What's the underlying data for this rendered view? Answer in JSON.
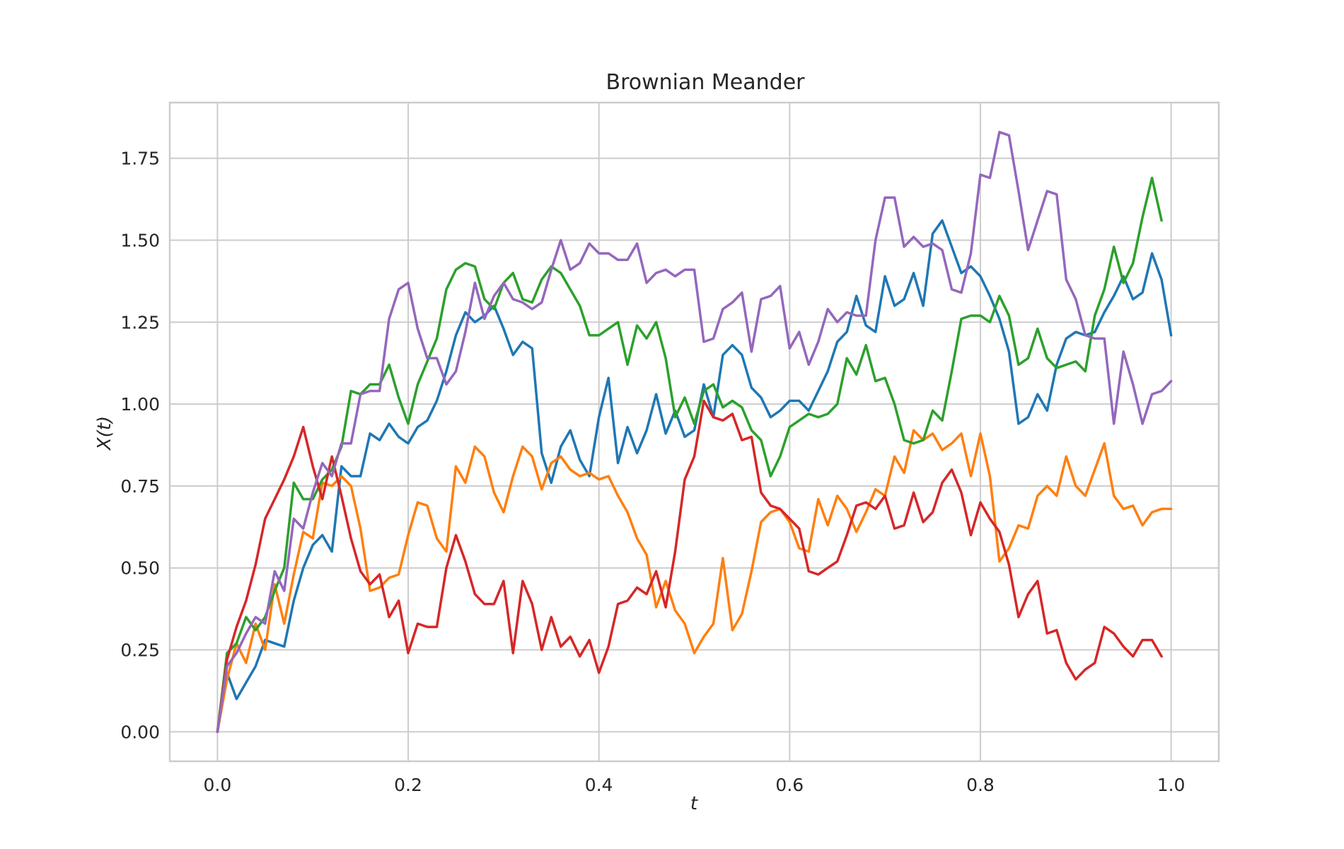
{
  "chart_data": {
    "type": "line",
    "title": "Brownian Meander",
    "xlabel": "t",
    "ylabel": "X(t)",
    "xlim": [
      -0.05,
      1.05
    ],
    "ylim": [
      -0.09,
      1.92
    ],
    "xticks": [
      0.0,
      0.2,
      0.4,
      0.6,
      0.8,
      1.0
    ],
    "xtick_labels": [
      "0.0",
      "0.2",
      "0.4",
      "0.6",
      "0.8",
      "1.0"
    ],
    "yticks": [
      0.0,
      0.25,
      0.5,
      0.75,
      1.0,
      1.25,
      1.5,
      1.75
    ],
    "ytick_labels": [
      "0.00",
      "0.25",
      "0.50",
      "0.75",
      "1.00",
      "1.25",
      "1.50",
      "1.75"
    ],
    "grid": true,
    "legend": "none",
    "x_step": 0.01,
    "series": [
      {
        "color": "#1f77b4",
        "values": [
          0.0,
          0.18,
          0.1,
          0.15,
          0.2,
          0.28,
          0.27,
          0.26,
          0.4,
          0.5,
          0.57,
          0.6,
          0.55,
          0.81,
          0.78,
          0.78,
          0.91,
          0.89,
          0.94,
          0.9,
          0.88,
          0.93,
          0.95,
          1.01,
          1.1,
          1.21,
          1.28,
          1.25,
          1.27,
          1.3,
          1.23,
          1.15,
          1.19,
          1.17,
          0.85,
          0.76,
          0.87,
          0.92,
          0.83,
          0.78,
          0.96,
          1.08,
          0.82,
          0.93,
          0.85,
          0.92,
          1.03,
          0.91,
          0.98,
          0.9,
          0.92,
          1.06,
          0.96,
          1.15,
          1.18,
          1.15,
          1.05,
          1.02,
          0.96,
          0.98,
          1.01,
          1.01,
          0.98,
          1.04,
          1.1,
          1.19,
          1.22,
          1.33,
          1.24,
          1.22,
          1.39,
          1.3,
          1.32,
          1.4,
          1.3,
          1.52,
          1.56,
          1.48,
          1.4,
          1.42,
          1.39,
          1.33,
          1.26,
          1.16,
          0.94,
          0.96,
          1.03,
          0.98,
          1.12,
          1.2,
          1.22,
          1.21,
          1.22,
          1.28,
          1.33,
          1.39,
          1.32,
          1.34,
          1.46,
          1.38,
          1.21
        ]
      },
      {
        "color": "#ff7f0e",
        "values": [
          0.0,
          0.16,
          0.27,
          0.21,
          0.33,
          0.25,
          0.45,
          0.33,
          0.48,
          0.61,
          0.59,
          0.76,
          0.75,
          0.78,
          0.75,
          0.62,
          0.43,
          0.44,
          0.47,
          0.48,
          0.6,
          0.7,
          0.69,
          0.59,
          0.55,
          0.81,
          0.76,
          0.87,
          0.84,
          0.73,
          0.67,
          0.78,
          0.87,
          0.84,
          0.74,
          0.82,
          0.84,
          0.8,
          0.78,
          0.79,
          0.77,
          0.78,
          0.72,
          0.67,
          0.59,
          0.54,
          0.38,
          0.46,
          0.37,
          0.33,
          0.24,
          0.29,
          0.33,
          0.53,
          0.31,
          0.36,
          0.49,
          0.64,
          0.67,
          0.68,
          0.64,
          0.56,
          0.55,
          0.71,
          0.63,
          0.72,
          0.68,
          0.61,
          0.67,
          0.74,
          0.72,
          0.84,
          0.79,
          0.92,
          0.89,
          0.91,
          0.86,
          0.88,
          0.91,
          0.78,
          0.91,
          0.78,
          0.52,
          0.56,
          0.63,
          0.62,
          0.72,
          0.75,
          0.72,
          0.84,
          0.75,
          0.72,
          0.8,
          0.88,
          0.72,
          0.68,
          0.69,
          0.63,
          0.67,
          0.68,
          0.68
        ]
      },
      {
        "color": "#2ca02c",
        "values": [
          0.0,
          0.24,
          0.27,
          0.35,
          0.31,
          0.35,
          0.43,
          0.5,
          0.76,
          0.71,
          0.71,
          0.77,
          0.8,
          0.87,
          1.04,
          1.03,
          1.06,
          1.06,
          1.12,
          1.02,
          0.94,
          1.06,
          1.13,
          1.2,
          1.35,
          1.41,
          1.43,
          1.42,
          1.32,
          1.29,
          1.37,
          1.4,
          1.32,
          1.31,
          1.38,
          1.42,
          1.4,
          1.35,
          1.3,
          1.21,
          1.21,
          1.23,
          1.25,
          1.12,
          1.24,
          1.2,
          1.25,
          1.14,
          0.96,
          1.02,
          0.94,
          1.04,
          1.06,
          0.99,
          1.01,
          0.99,
          0.92,
          0.89,
          0.78,
          0.84,
          0.93,
          0.95,
          0.97,
          0.96,
          0.97,
          1.0,
          1.14,
          1.09,
          1.18,
          1.07,
          1.08,
          1.0,
          0.89,
          0.88,
          0.89,
          0.98,
          0.95,
          1.1,
          1.26,
          1.27,
          1.27,
          1.25,
          1.33,
          1.27,
          1.12,
          1.14,
          1.23,
          1.14,
          1.11,
          1.12,
          1.13,
          1.1,
          1.27,
          1.35,
          1.48,
          1.37,
          1.43,
          1.57,
          1.69,
          1.56
        ]
      },
      {
        "color": "#d62728",
        "values": [
          0.0,
          0.22,
          0.32,
          0.4,
          0.51,
          0.65,
          0.71,
          0.77,
          0.84,
          0.93,
          0.81,
          0.71,
          0.84,
          0.72,
          0.59,
          0.49,
          0.45,
          0.48,
          0.35,
          0.4,
          0.24,
          0.33,
          0.32,
          0.32,
          0.5,
          0.6,
          0.52,
          0.42,
          0.39,
          0.39,
          0.46,
          0.24,
          0.46,
          0.39,
          0.25,
          0.35,
          0.26,
          0.29,
          0.23,
          0.28,
          0.18,
          0.26,
          0.39,
          0.4,
          0.44,
          0.42,
          0.49,
          0.38,
          0.55,
          0.77,
          0.84,
          1.01,
          0.96,
          0.95,
          0.97,
          0.89,
          0.9,
          0.73,
          0.69,
          0.68,
          0.65,
          0.62,
          0.49,
          0.48,
          0.5,
          0.52,
          0.6,
          0.69,
          0.7,
          0.68,
          0.72,
          0.62,
          0.63,
          0.73,
          0.64,
          0.67,
          0.76,
          0.8,
          0.73,
          0.6,
          0.7,
          0.65,
          0.61,
          0.51,
          0.35,
          0.42,
          0.46,
          0.3,
          0.31,
          0.21,
          0.16,
          0.19,
          0.21,
          0.32,
          0.3,
          0.26,
          0.23,
          0.28,
          0.28,
          0.23
        ]
      },
      {
        "color": "#9467bd",
        "values": [
          0.0,
          0.2,
          0.24,
          0.3,
          0.35,
          0.33,
          0.49,
          0.43,
          0.65,
          0.62,
          0.73,
          0.82,
          0.78,
          0.88,
          0.88,
          1.03,
          1.04,
          1.04,
          1.26,
          1.35,
          1.37,
          1.23,
          1.14,
          1.14,
          1.06,
          1.1,
          1.22,
          1.37,
          1.26,
          1.33,
          1.37,
          1.32,
          1.31,
          1.29,
          1.31,
          1.41,
          1.5,
          1.41,
          1.43,
          1.49,
          1.46,
          1.46,
          1.44,
          1.44,
          1.49,
          1.37,
          1.4,
          1.41,
          1.39,
          1.41,
          1.41,
          1.19,
          1.2,
          1.29,
          1.31,
          1.34,
          1.16,
          1.32,
          1.33,
          1.36,
          1.17,
          1.22,
          1.12,
          1.19,
          1.29,
          1.25,
          1.28,
          1.27,
          1.27,
          1.5,
          1.63,
          1.63,
          1.48,
          1.51,
          1.48,
          1.49,
          1.47,
          1.35,
          1.34,
          1.46,
          1.7,
          1.69,
          1.83,
          1.82,
          1.65,
          1.47,
          1.56,
          1.65,
          1.64,
          1.38,
          1.32,
          1.21,
          1.2,
          1.2,
          0.94,
          1.16,
          1.06,
          0.94,
          1.03,
          1.04,
          1.07
        ]
      }
    ]
  }
}
